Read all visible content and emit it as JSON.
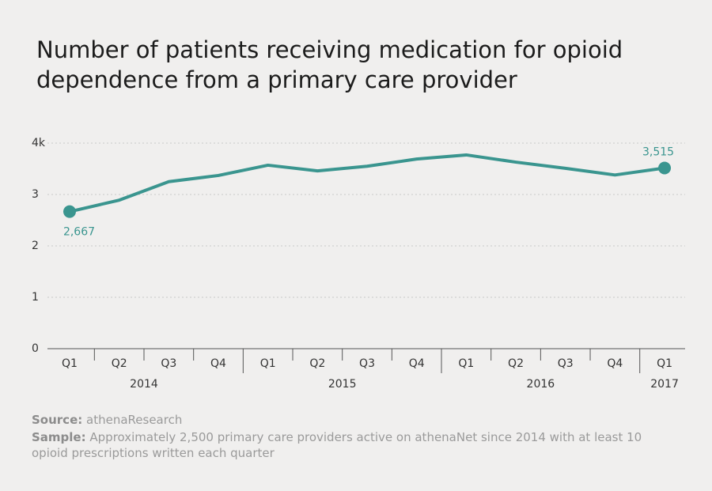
{
  "chart_data": {
    "type": "line",
    "title": "Number of patients receiving medication for opioid dependence from a primary care provider",
    "groups": [
      {
        "name": "2014",
        "categories": [
          "Q1",
          "Q2",
          "Q3",
          "Q4"
        ]
      },
      {
        "name": "2015",
        "categories": [
          "Q1",
          "Q2",
          "Q3",
          "Q4"
        ]
      },
      {
        "name": "2016",
        "categories": [
          "Q1",
          "Q2",
          "Q3",
          "Q4"
        ]
      },
      {
        "name": "2017",
        "categories": [
          "Q1"
        ]
      }
    ],
    "values": [
      2.667,
      2.89,
      3.25,
      3.37,
      3.57,
      3.46,
      3.55,
      3.69,
      3.77,
      3.63,
      3.51,
      3.38,
      3.515
    ],
    "value_labels": [
      "2,667",
      null,
      null,
      null,
      null,
      null,
      null,
      null,
      null,
      null,
      null,
      null,
      "3,515"
    ],
    "color": "#3a958f",
    "ylim": [
      0,
      4
    ],
    "yticks": [
      0,
      1,
      2,
      3,
      {
        "value": 4,
        "label": "4k"
      }
    ],
    "grid": true,
    "source": {
      "label": "Source:",
      "text": "athenaResearch"
    },
    "sample": {
      "label": "Sample:",
      "text": "Approximately 2,500 primary care providers active on athenaNet since 2014 with at least 10 opioid prescriptions written each quarter"
    }
  }
}
